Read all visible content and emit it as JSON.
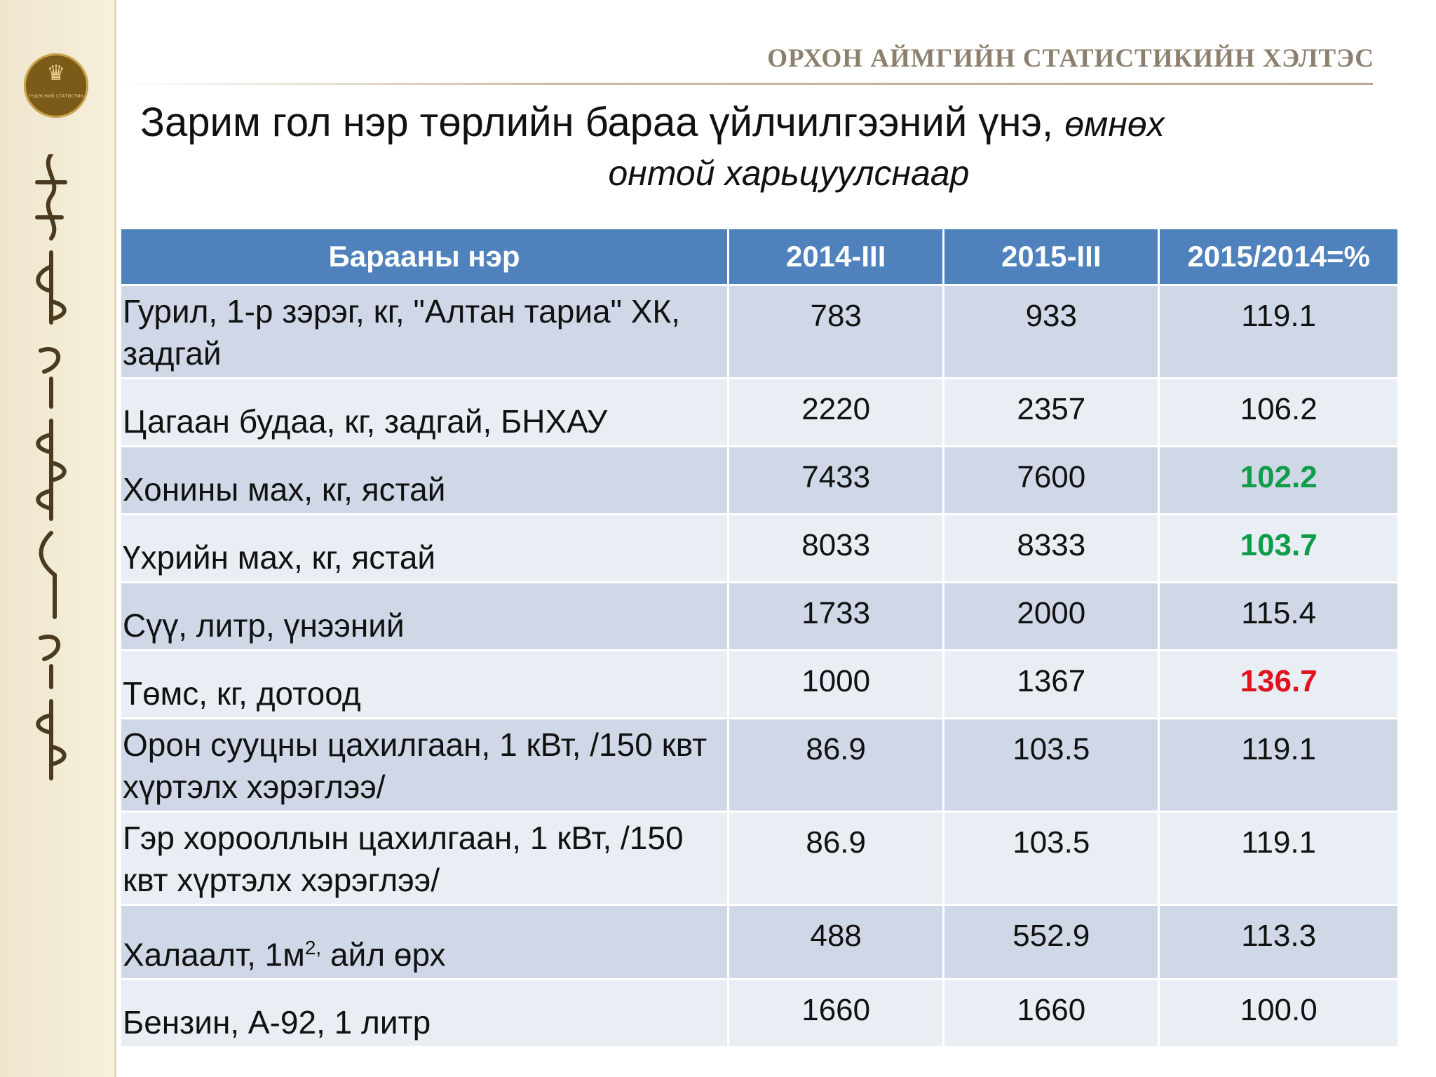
{
  "logo": {
    "text": "ҮНДЭСНИЙ СТАТИСТИК"
  },
  "header": {
    "organization": "ОРХОН АЙМГИЙН СТАТИСТИКИЙН ХЭЛТЭС"
  },
  "title": {
    "main": "Зарим гол нэр төрлийн бараа үйлчилгээний үнэ, ",
    "sub_part1": "өмнөх",
    "sub_part2": "онтой харьцуулснаар"
  },
  "table": {
    "headers": [
      "Барааны нэр",
      "2014-III",
      "2015-III",
      "2015/2014=%"
    ],
    "rows": [
      {
        "name": "Гурил, 1-р зэрэг, кг, \"Алтан тариа\" ХК, задгай",
        "y2014": "783",
        "y2015": "933",
        "pct": "119.1",
        "highlight": ""
      },
      {
        "name": "Цагаан будаа, кг, задгай, БНХАУ",
        "y2014": "2220",
        "y2015": "2357",
        "pct": "106.2",
        "highlight": ""
      },
      {
        "name": "Хонины мах, кг, ястай",
        "y2014": "7433",
        "y2015": "7600",
        "pct": "102.2",
        "highlight": "green"
      },
      {
        "name": "Үхрийн мах, кг, ястай",
        "y2014": "8033",
        "y2015": "8333",
        "pct": "103.7",
        "highlight": "green"
      },
      {
        "name": "Сүү, литр, үнээний",
        "y2014": "1733",
        "y2015": "2000",
        "pct": "115.4",
        "highlight": ""
      },
      {
        "name": "Төмс, кг, дотоод",
        "y2014": "1000",
        "y2015": "1367",
        "pct": "136.7",
        "highlight": "red"
      },
      {
        "name": "Орон сууцны цахилгаан, 1 кВт, /150 квт хүртэлх хэрэглээ/",
        "y2014": "86.9",
        "y2015": "103.5",
        "pct": "119.1",
        "highlight": ""
      },
      {
        "name": "Гэр хорооллын цахилгаан, 1 кВт, /150 квт хүртэлх хэрэглээ/",
        "y2014": "86.9",
        "y2015": "103.5",
        "pct": "119.1",
        "highlight": ""
      },
      {
        "name_prefix": "Халаалт, 1м",
        "name_sup": "2,",
        "name_suffix": " айл өрх",
        "y2014": "488",
        "y2015": "552.9",
        "pct": "113.3",
        "highlight": ""
      },
      {
        "name": "Бензин, А-92, 1 литр",
        "y2014": "1660",
        "y2015": "1660",
        "pct": "100.0",
        "highlight": ""
      }
    ]
  },
  "colors": {
    "header_bg": "#4f81bd",
    "row_odd": "#d0d8e8",
    "row_even": "#e9edf4",
    "increase_low": "#0f9d4a",
    "increase_high": "#e0141e"
  },
  "icons": {
    "logo": "national-statistics-emblem",
    "sidebar_script": "mongolian-script-decoration"
  }
}
